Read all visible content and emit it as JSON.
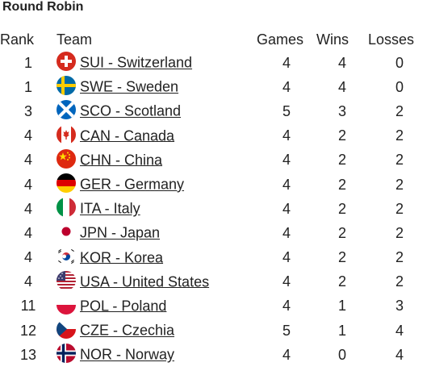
{
  "title": "Round Robin",
  "headers": {
    "rank": "Rank",
    "team": "Team",
    "games": "Games",
    "wins": "Wins",
    "losses": "Losses"
  },
  "rows": [
    {
      "rank": "1",
      "team": "SUI - Switzerland",
      "flag": "switzerland-flag-icon",
      "games": "4",
      "wins": "4",
      "losses": "0"
    },
    {
      "rank": "1",
      "team": "SWE - Sweden",
      "flag": "sweden-flag-icon",
      "games": "4",
      "wins": "4",
      "losses": "0"
    },
    {
      "rank": "3",
      "team": "SCO - Scotland",
      "flag": "scotland-flag-icon",
      "games": "5",
      "wins": "3",
      "losses": "2"
    },
    {
      "rank": "4",
      "team": "CAN - Canada",
      "flag": "canada-flag-icon",
      "games": "4",
      "wins": "2",
      "losses": "2"
    },
    {
      "rank": "4",
      "team": "CHN - China",
      "flag": "china-flag-icon",
      "games": "4",
      "wins": "2",
      "losses": "2"
    },
    {
      "rank": "4",
      "team": "GER - Germany",
      "flag": "germany-flag-icon",
      "games": "4",
      "wins": "2",
      "losses": "2"
    },
    {
      "rank": "4",
      "team": "ITA - Italy",
      "flag": "italy-flag-icon",
      "games": "4",
      "wins": "2",
      "losses": "2"
    },
    {
      "rank": "4",
      "team": "JPN - Japan",
      "flag": "japan-flag-icon",
      "games": "4",
      "wins": "2",
      "losses": "2"
    },
    {
      "rank": "4",
      "team": "KOR - Korea",
      "flag": "korea-flag-icon",
      "games": "4",
      "wins": "2",
      "losses": "2"
    },
    {
      "rank": "4",
      "team": "USA - United States",
      "flag": "usa-flag-icon",
      "games": "4",
      "wins": "2",
      "losses": "2"
    },
    {
      "rank": "11",
      "team": "POL - Poland",
      "flag": "poland-flag-icon",
      "games": "4",
      "wins": "1",
      "losses": "3"
    },
    {
      "rank": "12",
      "team": "CZE - Czechia",
      "flag": "czechia-flag-icon",
      "games": "5",
      "wins": "1",
      "losses": "4"
    },
    {
      "rank": "13",
      "team": "NOR - Norway",
      "flag": "norway-flag-icon",
      "games": "4",
      "wins": "0",
      "losses": "4"
    }
  ]
}
